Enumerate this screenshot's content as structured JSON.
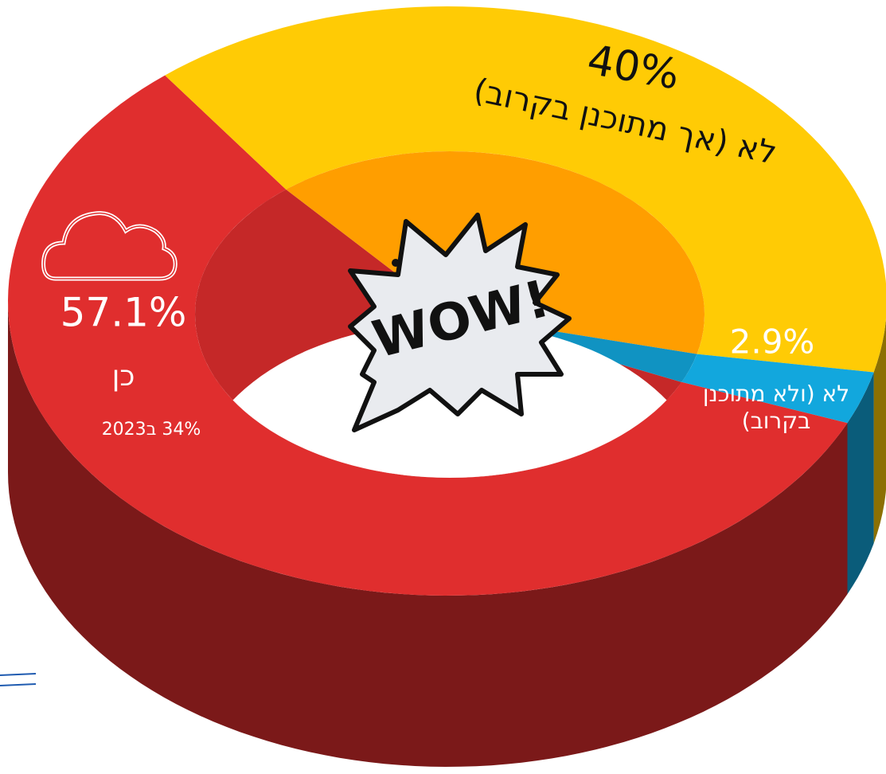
{
  "chart_data": {
    "type": "donut",
    "categories": [
      "כן",
      "לא (אך מתוכנן בקרוב)",
      "לא (ולא מתוכנן בקרוב)"
    ],
    "values": [
      57.1,
      40,
      2.9
    ],
    "value_labels": [
      "57.1%",
      "40%",
      "2.9%"
    ],
    "colors": [
      "#e02e2e",
      "#ffcb05",
      "#12a7dd"
    ],
    "annotations": [
      "34% ב2023",
      "WOW!"
    ]
  }
}
